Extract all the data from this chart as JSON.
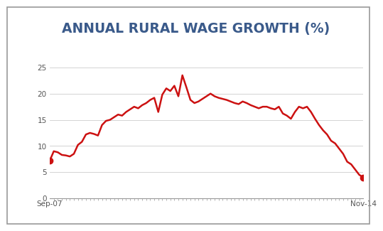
{
  "title": "ANNUAL RURAL WAGE GROWTH (%)",
  "title_fontsize": 13.5,
  "title_color": "#3a5a8a",
  "title_fontweight": "bold",
  "line_color": "#cc1111",
  "line_width": 1.8,
  "marker_color": "#cc1111",
  "marker_size": 6,
  "background_color": "#ffffff",
  "plot_bg_color": "#ffffff",
  "grid_color": "#cccccc",
  "outer_border_color": "#aaaaaa",
  "ylim": [
    0,
    25
  ],
  "yticks": [
    0,
    5,
    10,
    15,
    20,
    25
  ],
  "xlabel_left": "Sep-07",
  "xlabel_right": "Nov-14",
  "values": [
    7.2,
    9.0,
    8.8,
    8.3,
    8.2,
    8.0,
    8.5,
    10.2,
    10.8,
    12.2,
    12.5,
    12.3,
    12.0,
    14.0,
    14.8,
    15.0,
    15.5,
    16.0,
    15.8,
    16.5,
    17.0,
    17.5,
    17.2,
    17.8,
    18.2,
    18.8,
    19.2,
    16.5,
    19.8,
    21.0,
    20.5,
    21.5,
    19.5,
    23.5,
    21.2,
    18.8,
    18.2,
    18.5,
    19.0,
    19.5,
    20.0,
    19.5,
    19.2,
    19.0,
    18.8,
    18.5,
    18.2,
    18.0,
    18.5,
    18.2,
    17.8,
    17.5,
    17.2,
    17.5,
    17.5,
    17.2,
    17.0,
    17.5,
    16.2,
    15.8,
    15.2,
    16.5,
    17.5,
    17.2,
    17.5,
    16.5,
    15.2,
    14.0,
    13.0,
    12.2,
    11.0,
    10.5,
    9.5,
    8.5,
    7.0,
    6.5,
    5.5,
    4.5,
    4.0
  ]
}
